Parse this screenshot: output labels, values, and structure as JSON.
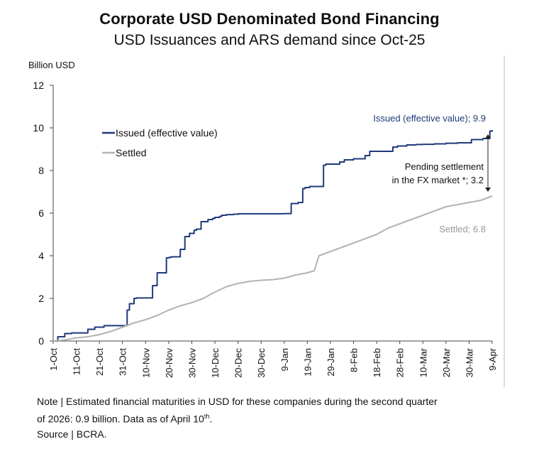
{
  "title": "Corporate USD Denominated Bond Financing",
  "subtitle": "USD Issuances and ARS demand since Oct-25",
  "note_line1": "Note | Estimated financial maturities in USD for these companies during the second quarter",
  "note_line2_prefix": "of 2026: 0.9 billion. Data as of April 10",
  "note_line2_sup": "th",
  "note_line2_suffix": ".",
  "source": "Source | BCRA.",
  "colors": {
    "issued": "#1f3a7a",
    "settled": "#b3b3b3",
    "axis": "#444444"
  },
  "chart_data": {
    "type": "line",
    "ylabel": "Billion USD",
    "ylim": [
      0,
      12
    ],
    "yticks": [
      0,
      2,
      4,
      6,
      8,
      10,
      12
    ],
    "xlim": [
      0,
      190
    ],
    "xticks": [
      {
        "label": "1-Oct",
        "day": 0
      },
      {
        "label": "11-Oct",
        "day": 10
      },
      {
        "label": "21-Oct",
        "day": 20
      },
      {
        "label": "31-Oct",
        "day": 30
      },
      {
        "label": "10-Nov",
        "day": 40
      },
      {
        "label": "20-Nov",
        "day": 50
      },
      {
        "label": "30-Nov",
        "day": 60
      },
      {
        "label": "10-Dec",
        "day": 70
      },
      {
        "label": "20-Dec",
        "day": 80
      },
      {
        "label": "30-Dec",
        "day": 90
      },
      {
        "label": "9-Jan",
        "day": 100
      },
      {
        "label": "19-Jan",
        "day": 110
      },
      {
        "label": "29-Jan",
        "day": 120
      },
      {
        "label": "8-Feb",
        "day": 130
      },
      {
        "label": "18-Feb",
        "day": 140
      },
      {
        "label": "28-Feb",
        "day": 150
      },
      {
        "label": "10-Mar",
        "day": 160
      },
      {
        "label": "20-Mar",
        "day": 170
      },
      {
        "label": "30-Mar",
        "day": 180
      },
      {
        "label": "9-Apr",
        "day": 190
      }
    ],
    "series": [
      {
        "name": "Issued (effective value)",
        "step": true,
        "x": [
          0,
          2,
          5,
          8,
          15,
          18,
          22,
          32,
          33,
          35,
          36,
          43,
          45,
          49,
          50,
          51,
          55,
          57,
          59,
          61,
          62,
          64,
          67,
          69,
          70,
          72,
          73,
          75,
          78,
          80,
          85,
          90,
          95,
          100,
          103,
          106,
          108,
          109,
          111,
          117,
          118,
          124,
          126,
          130,
          135,
          137,
          147,
          149,
          153,
          157,
          160,
          165,
          170,
          175,
          181,
          186,
          189,
          190
        ],
        "values": [
          0.0,
          0.2,
          0.35,
          0.38,
          0.55,
          0.65,
          0.72,
          1.45,
          1.75,
          2.0,
          2.02,
          2.6,
          3.2,
          3.9,
          3.92,
          3.95,
          4.3,
          4.9,
          5.05,
          5.2,
          5.25,
          5.6,
          5.7,
          5.75,
          5.8,
          5.85,
          5.9,
          5.93,
          5.95,
          5.97,
          5.97,
          5.97,
          5.97,
          5.98,
          6.45,
          6.5,
          7.15,
          7.2,
          7.25,
          8.25,
          8.3,
          8.4,
          8.5,
          8.55,
          8.7,
          8.9,
          9.1,
          9.15,
          9.2,
          9.22,
          9.23,
          9.25,
          9.28,
          9.3,
          9.45,
          9.5,
          9.85,
          9.9
        ]
      },
      {
        "name": "Settled",
        "step": false,
        "x": [
          0,
          5,
          10,
          15,
          20,
          25,
          30,
          35,
          40,
          45,
          50,
          55,
          60,
          65,
          70,
          75,
          80,
          85,
          90,
          95,
          100,
          105,
          110,
          113,
          115,
          120,
          125,
          130,
          135,
          140,
          145,
          150,
          155,
          160,
          165,
          170,
          175,
          180,
          185,
          190
        ],
        "values": [
          0.0,
          0.05,
          0.15,
          0.2,
          0.3,
          0.45,
          0.65,
          0.85,
          1.0,
          1.2,
          1.45,
          1.65,
          1.8,
          2.0,
          2.3,
          2.55,
          2.7,
          2.8,
          2.85,
          2.88,
          2.95,
          3.1,
          3.2,
          3.3,
          4.0,
          4.2,
          4.4,
          4.6,
          4.8,
          5.0,
          5.3,
          5.5,
          5.7,
          5.9,
          6.1,
          6.3,
          6.4,
          6.5,
          6.6,
          6.8
        ]
      }
    ],
    "annotations": {
      "issued_end": "Issued (effective value); 9.9",
      "settled_end": "Settled; 6.8",
      "pending_line1": "Pending settlement",
      "pending_line2": "in the FX market *; 3.2"
    }
  }
}
